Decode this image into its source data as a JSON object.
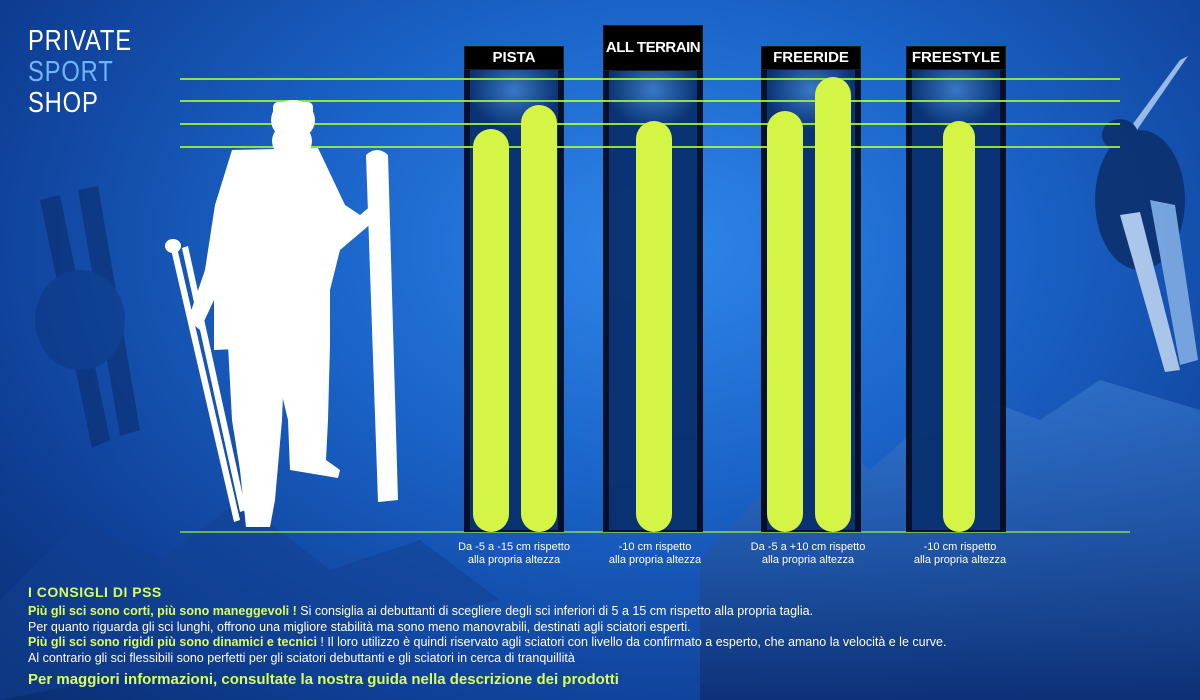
{
  "logo": {
    "line1": "PRIVATE",
    "line2": "SPORT",
    "line3": "SHOP"
  },
  "categories": [
    {
      "label": "PISTA",
      "caption_line1": "Da -5 a -15 cm rispetto",
      "caption_line2": "alla propria altezza"
    },
    {
      "label": "ALL TERRAIN",
      "caption_line1": "-10 cm rispetto",
      "caption_line2": "alla propria altezza"
    },
    {
      "label": "FREERIDE",
      "caption_line1": "Da -5 a +10 cm rispetto",
      "caption_line2": "alla propria altezza"
    },
    {
      "label": "FREESTYLE",
      "caption_line1": "-10 cm rispetto",
      "caption_line2": "alla propria altezza"
    }
  ],
  "advice": {
    "title": "I CONSIGLI DI PSS",
    "p1_highlight": "Più gli sci sono corti, più sono maneggevoli !",
    "p1_text": " Si consiglia ai debuttanti di scegliere degli sci inferiori di 5 a 15 cm rispetto alla propria taglia.",
    "p2_text": "Per quanto riguarda gli sci lunghi, offrono una migliore stabilità ma sono meno manovrabili, destinati agli sciatori esperti.",
    "p3_highlight": "Più gli sci sono rigidi più sono dinamici e tecnici",
    "p3_text": " ! Il loro utilizzo è quindi riservato agli sciatori con livello da confirmato a esperto, che amano la velocità e le curve.",
    "p4_text": "Al contrario gli sci flessibili sono perfetti per gli sciatori debuttanti e gli sciatori in cerca di tranquillità",
    "footer": "Per maggiori informazioni, consultate la nostra guida nella descrizione dei prodotti"
  },
  "colors": {
    "ski_green": "#d4f545",
    "guide_line": "#9ef03a",
    "highlight_text": "#d8ff5a",
    "background_blue": "#1a63c8"
  }
}
